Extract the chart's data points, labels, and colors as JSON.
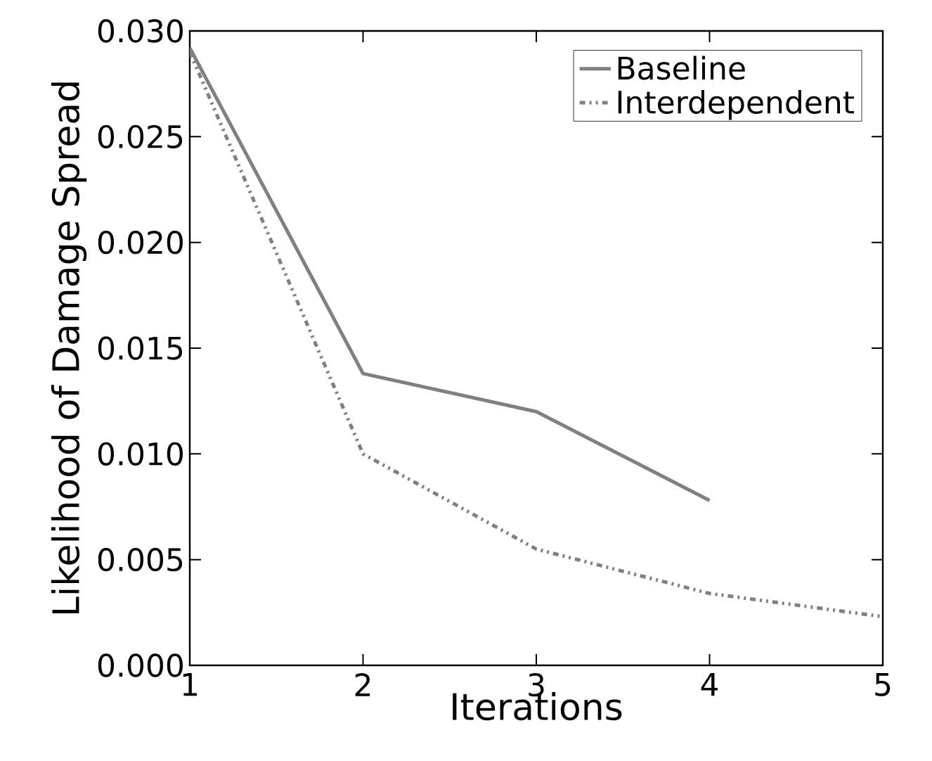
{
  "chart_data": {
    "type": "line",
    "xlabel": "Iterations",
    "ylabel": "Likelihood of Damage Spread",
    "x": [
      1,
      2,
      3,
      4,
      5
    ],
    "series": [
      {
        "name": "Baseline",
        "color": "#808080",
        "line_style": "solid",
        "values": [
          0.0292,
          0.0138,
          0.012,
          0.0078,
          null
        ]
      },
      {
        "name": "Interdependent",
        "color": "#808080",
        "line_style": "dotted",
        "values": [
          0.029,
          0.01,
          0.0055,
          0.0034,
          0.0023
        ]
      }
    ],
    "xlim": [
      1,
      5
    ],
    "ylim": [
      0,
      0.03
    ],
    "xticks": [
      1,
      2,
      3,
      4,
      5
    ],
    "yticks": [
      {
        "value": 0,
        "label": "0.000"
      },
      {
        "value": 0.005,
        "label": "0.005"
      },
      {
        "value": 0.01,
        "label": "0.010"
      },
      {
        "value": 0.015,
        "label": "0.015"
      },
      {
        "value": 0.02,
        "label": "0.020"
      },
      {
        "value": 0.025,
        "label": "0.025"
      },
      {
        "value": 0.03,
        "label": "0.030"
      }
    ],
    "grid": false,
    "legend": "top right",
    "marker": "none"
  }
}
